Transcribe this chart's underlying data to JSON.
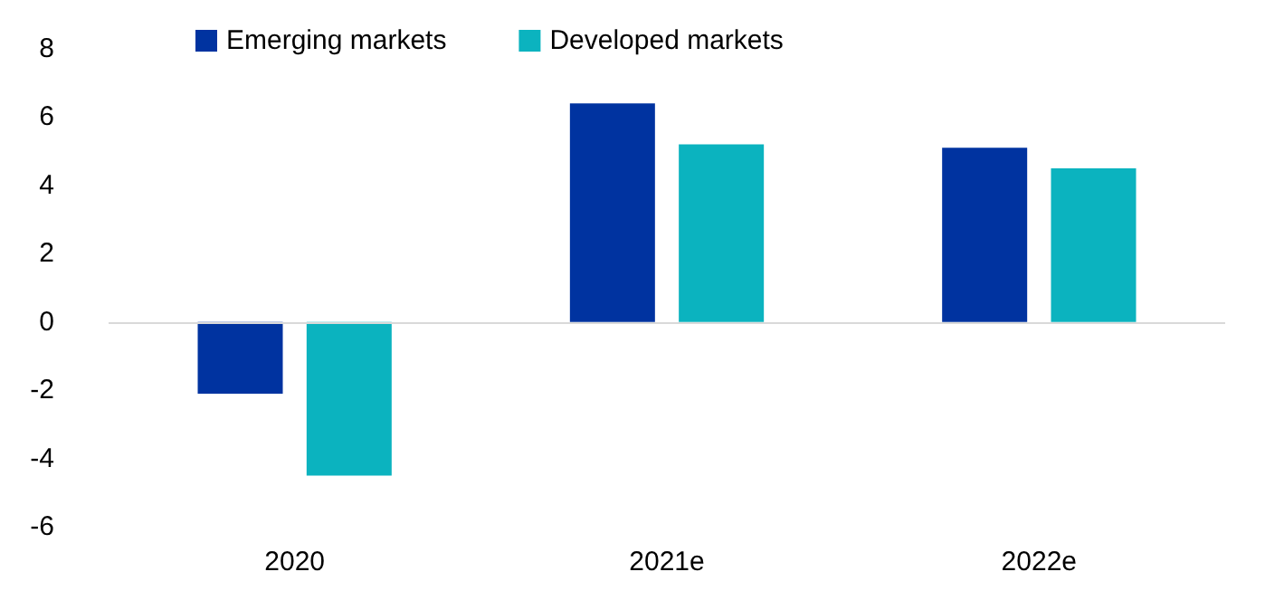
{
  "chart_data": {
    "type": "bar",
    "categories": [
      "2020",
      "2021e",
      "2022e"
    ],
    "series": [
      {
        "name": "Emerging markets",
        "color": "#0033a0",
        "values": [
          -2.1,
          6.4,
          5.1
        ]
      },
      {
        "name": "Developed markets",
        "color": "#0bb3bf",
        "values": [
          -4.5,
          5.2,
          4.5
        ]
      }
    ],
    "ylim": [
      -6,
      8
    ],
    "yticks": [
      -6,
      -4,
      -2,
      0,
      2,
      4,
      6,
      8
    ],
    "ref_lines": [
      {
        "axis": "y",
        "value": 0,
        "color": "#d9d9d9"
      }
    ],
    "legend": "top"
  }
}
